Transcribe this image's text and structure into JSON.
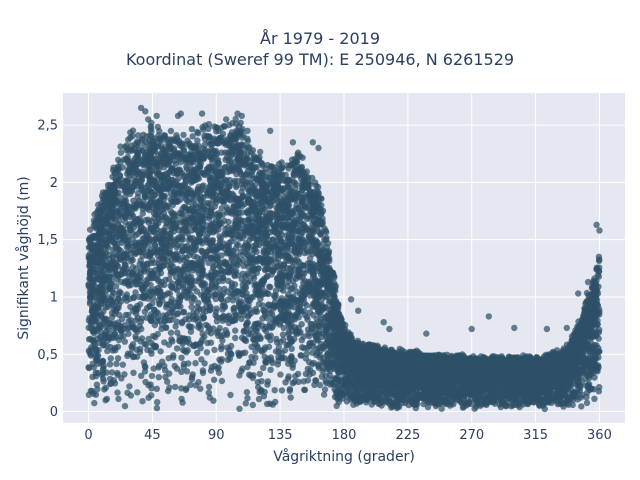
{
  "chart_data": {
    "type": "scatter",
    "title_line1": "År 1979 - 2019",
    "title_line2": "Koordinat (Sweref 99 TM): E 250946, N 6261529",
    "xlabel": "Vågriktning (grader)",
    "ylabel": "Signifikant våghöjd (m)",
    "xlim": [
      -18,
      378
    ],
    "ylim": [
      -0.1,
      2.78
    ],
    "x_ticks": [
      0,
      45,
      90,
      135,
      180,
      225,
      270,
      315,
      360
    ],
    "x_tick_labels": [
      "0",
      "45",
      "90",
      "135",
      "180",
      "225",
      "270",
      "315",
      "360"
    ],
    "y_ticks": [
      0,
      0.5,
      1,
      1.5,
      2,
      2.5
    ],
    "y_tick_labels": [
      "0",
      "0,5",
      "1",
      "1,5",
      "2",
      "2,5"
    ],
    "grid": true,
    "legend": "none",
    "marker_color": "#2e5068",
    "plot_bg": "#e5e8f0",
    "envelope": {
      "x": [
        0,
        10,
        20,
        30,
        45,
        60,
        75,
        90,
        105,
        120,
        135,
        150,
        160,
        165,
        170,
        175,
        180,
        190,
        210,
        240,
        270,
        300,
        320,
        335,
        345,
        355,
        360
      ],
      "y": [
        1.55,
        1.9,
        2.2,
        2.4,
        2.45,
        2.4,
        2.42,
        2.45,
        2.5,
        2.2,
        2.15,
        2.25,
        2.0,
        1.8,
        1.4,
        1.0,
        0.75,
        0.6,
        0.55,
        0.5,
        0.48,
        0.47,
        0.48,
        0.55,
        0.75,
        1.15,
        1.35
      ]
    },
    "outliers": {
      "x": [
        37,
        40,
        42,
        48,
        63,
        65,
        80,
        97,
        99,
        105,
        108,
        112,
        128,
        144,
        158,
        162,
        185,
        190,
        208,
        212,
        238,
        270,
        282,
        300,
        323,
        337,
        345,
        352,
        358,
        360
      ],
      "y": [
        2.65,
        2.62,
        2.55,
        2.58,
        2.58,
        2.6,
        2.6,
        2.55,
        2.5,
        2.6,
        2.58,
        2.45,
        2.45,
        2.35,
        2.35,
        2.3,
        0.98,
        0.88,
        0.78,
        0.72,
        0.68,
        0.72,
        0.83,
        0.73,
        0.72,
        0.73,
        1.03,
        1.13,
        1.63,
        1.58
      ]
    },
    "point_count": 9000
  }
}
